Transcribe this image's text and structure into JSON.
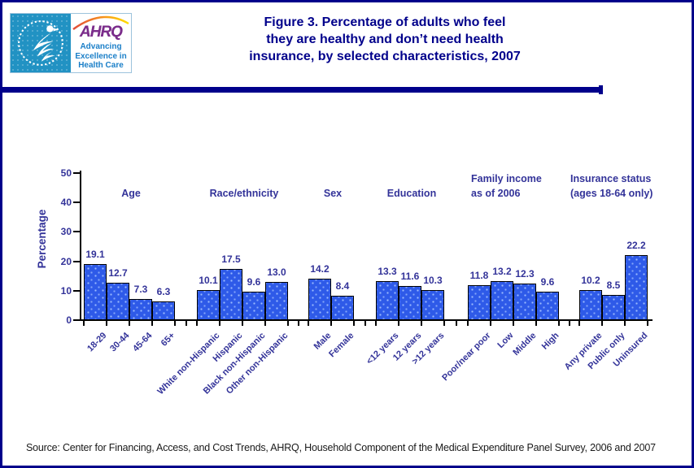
{
  "page": {
    "title_lines": [
      "Figure 3. Percentage of adults who feel",
      "they are healthy and don’t need health",
      "insurance, by selected characteristics, 2007"
    ],
    "source": "Source: Center for Financing, Access, and Cost Trends, AHRQ, Household Component of the Medical Expenditure Panel Survey,  2006 and 2007"
  },
  "logo": {
    "hhs_seal": "U.S. Department of Health & Human Services seal",
    "ahrq": "AHRQ",
    "tagline_lines": [
      "Advancing",
      "Excellence in",
      "Health Care"
    ]
  },
  "colors": {
    "accent_navy": "#00008B",
    "chart_text_navy": "#333399",
    "bar_fill": "#2E5AE8",
    "bar_border": "#000000",
    "hhs_blue": "#2192C3",
    "ahrq_purple": "#7B2D8B",
    "tagline_blue": "#1B7FC8"
  },
  "chart_data": {
    "type": "bar",
    "title": "Percentage of adults who feel they are healthy and don’t need health insurance, by selected characteristics, 2007",
    "xlabel": "",
    "ylabel": "Percentage",
    "ylim": [
      0,
      50
    ],
    "yticks": [
      0,
      10,
      20,
      30,
      40,
      50
    ],
    "grid": false,
    "legend": "none",
    "groups": [
      {
        "header_lines": [
          "Age"
        ],
        "categories": [
          "18-29",
          "30-44",
          "45-64",
          "65+"
        ],
        "values": [
          19.1,
          12.7,
          7.3,
          6.3
        ],
        "value_labels": [
          "19.1",
          "12.7",
          "7.3",
          "6.3"
        ]
      },
      {
        "header_lines": [
          "Race/ethnicity"
        ],
        "categories": [
          "White non-Hispanic",
          "Hispanic",
          "Black non-Hispanic",
          "Other non-Hispanic"
        ],
        "values": [
          10.1,
          17.5,
          9.6,
          13.0
        ],
        "value_labels": [
          "10.1",
          "17.5",
          "9.6",
          "13.0"
        ]
      },
      {
        "header_lines": [
          "Sex"
        ],
        "categories": [
          "Male",
          "Female"
        ],
        "values": [
          14.2,
          8.4
        ],
        "value_labels": [
          "14.2",
          "8.4"
        ]
      },
      {
        "header_lines": [
          "Education"
        ],
        "categories": [
          "<12 years",
          "12 years",
          ">12 years"
        ],
        "values": [
          13.3,
          11.6,
          10.3
        ],
        "value_labels": [
          "13.3",
          "11.6",
          "10.3"
        ]
      },
      {
        "header_lines": [
          "Family income",
          "as of 2006"
        ],
        "categories": [
          "Poor/near poor",
          "Low",
          "Middle",
          "High"
        ],
        "values": [
          11.8,
          13.2,
          12.3,
          9.6
        ],
        "value_labels": [
          "11.8",
          "13.2",
          "12.3",
          "9.6"
        ]
      },
      {
        "header_lines": [
          "Insurance status",
          "(ages 18-64 only)"
        ],
        "categories": [
          "Any private",
          "Public only",
          "Uninsured"
        ],
        "values": [
          10.2,
          8.5,
          22.2
        ],
        "value_labels": [
          "10.2",
          "8.5",
          "22.2"
        ]
      }
    ]
  }
}
